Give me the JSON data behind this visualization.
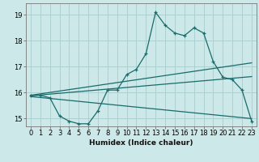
{
  "xlabel": "Humidex (Indice chaleur)",
  "bg_color": "#cce8e8",
  "grid_color": "#aacccc",
  "line_color": "#1a6b6b",
  "xlim": [
    -0.5,
    23.5
  ],
  "ylim": [
    14.7,
    19.45
  ],
  "yticks": [
    15,
    16,
    17,
    18,
    19
  ],
  "xticks": [
    0,
    1,
    2,
    3,
    4,
    5,
    6,
    7,
    8,
    9,
    10,
    11,
    12,
    13,
    14,
    15,
    16,
    17,
    18,
    19,
    20,
    21,
    22,
    23
  ],
  "main_x": [
    0,
    1,
    2,
    3,
    4,
    5,
    6,
    7,
    8,
    9,
    10,
    11,
    12,
    13,
    14,
    15,
    16,
    17,
    18,
    19,
    20,
    21,
    22,
    23
  ],
  "main_y": [
    15.9,
    15.9,
    15.8,
    15.1,
    14.9,
    14.8,
    14.8,
    15.3,
    16.1,
    16.1,
    16.7,
    16.9,
    17.5,
    19.1,
    18.6,
    18.3,
    18.2,
    18.5,
    18.3,
    17.2,
    16.6,
    16.5,
    16.1,
    14.9
  ],
  "upper_line": {
    "x0": 0,
    "y0": 15.9,
    "x1": 23,
    "y1": 17.15
  },
  "mid_line": {
    "x0": 0,
    "y0": 15.88,
    "x1": 23,
    "y1": 16.62
  },
  "lower_line": {
    "x0": 0,
    "y0": 15.85,
    "x1": 23,
    "y1": 15.0
  },
  "xlabel_fontsize": 6.5,
  "tick_fontsize": 6.0,
  "linewidth": 0.9,
  "marker_size": 3.5
}
